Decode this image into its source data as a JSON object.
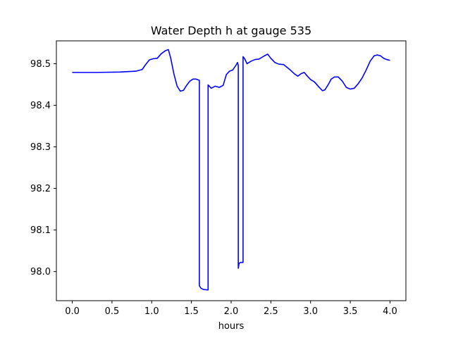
{
  "chart_data": {
    "type": "line",
    "title": "Water Depth h at gauge 535",
    "xlabel": "hours",
    "ylabel": "",
    "xlim": [
      -0.2,
      4.2
    ],
    "ylim": [
      97.93,
      98.555
    ],
    "grid": false,
    "legend": "none",
    "xticks": [
      0.0,
      0.5,
      1.0,
      1.5,
      2.0,
      2.5,
      3.0,
      3.5,
      4.0
    ],
    "xtick_labels": [
      "0.0",
      "0.5",
      "1.0",
      "1.5",
      "2.0",
      "2.5",
      "3.0",
      "3.5",
      "4.0"
    ],
    "yticks": [
      98.0,
      98.1,
      98.2,
      98.3,
      98.4,
      98.5
    ],
    "ytick_labels": [
      "98.0",
      "98.1",
      "98.2",
      "98.3",
      "98.4",
      "98.5"
    ],
    "line_color": "#0000ff",
    "series": [
      {
        "x": [
          0.0,
          0.3,
          0.6,
          0.8,
          0.88,
          0.92,
          0.97,
          1.02,
          1.07,
          1.12,
          1.17,
          1.21,
          1.24,
          1.28,
          1.32,
          1.36,
          1.4,
          1.44,
          1.48,
          1.52,
          1.56,
          1.6,
          1.6,
          1.62,
          1.65,
          1.7,
          1.71,
          1.71,
          1.75,
          1.8,
          1.85,
          1.9,
          1.94,
          1.98,
          2.02,
          2.06,
          2.08,
          2.09,
          2.09,
          2.1,
          2.12,
          2.15,
          2.15,
          2.17,
          2.2,
          2.25,
          2.3,
          2.35,
          2.42,
          2.46,
          2.5,
          2.55,
          2.6,
          2.66,
          2.7,
          2.75,
          2.8,
          2.84,
          2.88,
          2.92,
          2.96,
          3.0,
          3.05,
          3.1,
          3.15,
          3.18,
          3.22,
          3.26,
          3.3,
          3.35,
          3.4,
          3.45,
          3.5,
          3.55,
          3.6,
          3.65,
          3.7,
          3.75,
          3.8,
          3.84,
          3.88,
          3.92,
          3.96,
          4.0
        ],
        "y": [
          98.479,
          98.479,
          98.48,
          98.482,
          98.486,
          98.497,
          98.509,
          98.512,
          98.513,
          98.524,
          98.531,
          98.534,
          98.513,
          98.475,
          98.446,
          98.434,
          98.436,
          98.448,
          98.458,
          98.463,
          98.463,
          98.46,
          97.966,
          97.96,
          97.957,
          97.956,
          97.956,
          98.449,
          98.441,
          98.446,
          98.443,
          98.448,
          98.474,
          98.482,
          98.485,
          98.496,
          98.503,
          98.496,
          98.008,
          98.02,
          98.022,
          98.022,
          98.517,
          98.512,
          98.5,
          98.506,
          98.51,
          98.511,
          98.519,
          98.523,
          98.513,
          98.503,
          98.499,
          98.498,
          98.492,
          98.484,
          98.475,
          98.47,
          98.476,
          98.479,
          98.47,
          98.462,
          98.456,
          98.445,
          98.435,
          98.437,
          98.449,
          98.463,
          98.468,
          98.468,
          98.458,
          98.443,
          98.439,
          98.441,
          98.452,
          98.466,
          98.485,
          98.506,
          98.519,
          98.521,
          98.519,
          98.513,
          98.51,
          98.508
        ]
      }
    ]
  }
}
